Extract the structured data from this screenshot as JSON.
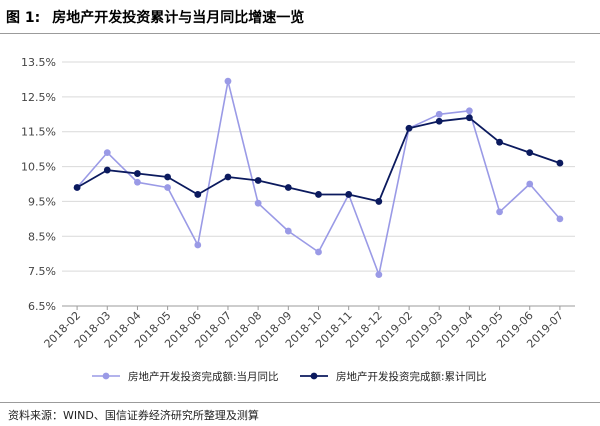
{
  "figure": {
    "label": "图 1:",
    "title": "房地产开发投资累计与当月同比增速一览"
  },
  "source_note": "资料来源：WIND、国信证券经济研究所整理及测算",
  "colors": {
    "monthly": "#9a9ae6",
    "cumulative": "#0b1a5e",
    "grid": "#d9d9d9",
    "axis": "#9b9b9b"
  },
  "chart_data": {
    "type": "line",
    "categories": [
      "2018-02",
      "2018-03",
      "2018-04",
      "2018-05",
      "2018-06",
      "2018-07",
      "2018-08",
      "2018-09",
      "2018-10",
      "2018-11",
      "2018-12",
      "2019-02",
      "2019-03",
      "2019-04",
      "2019-05",
      "2019-06",
      "2019-07"
    ],
    "series": [
      {
        "name": "房地产开发投资完成额:当月同比",
        "values": [
          9.9,
          10.9,
          10.05,
          9.9,
          8.25,
          12.95,
          9.45,
          8.65,
          8.05,
          9.7,
          7.4,
          11.6,
          12.0,
          12.1,
          9.2,
          10.0,
          9.0
        ]
      },
      {
        "name": "房地产开发投资完成额:累计同比",
        "values": [
          9.9,
          10.4,
          10.3,
          10.2,
          9.7,
          10.2,
          10.1,
          9.9,
          9.7,
          9.7,
          9.5,
          11.6,
          11.8,
          11.9,
          11.2,
          10.9,
          10.6
        ]
      }
    ],
    "yticks": [
      "6.5%",
      "7.5%",
      "8.5%",
      "9.5%",
      "10.5%",
      "11.5%",
      "12.5%",
      "13.5%"
    ],
    "ylim": [
      6.5,
      13.5
    ],
    "grid": true,
    "legend_position": "bottom"
  }
}
